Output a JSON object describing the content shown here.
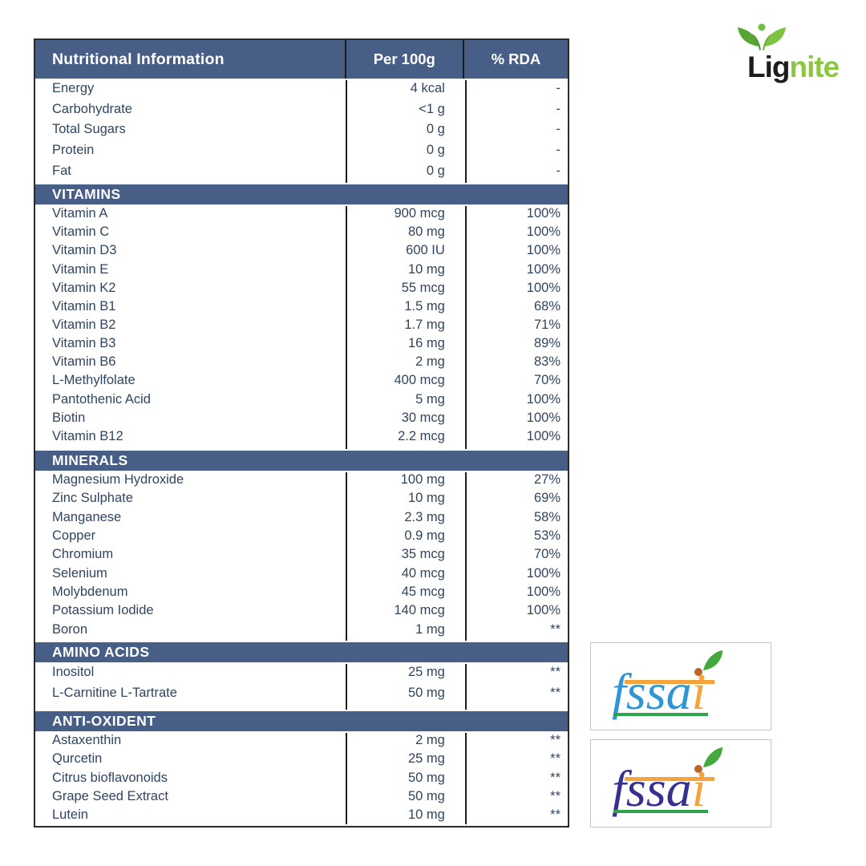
{
  "brand": {
    "prefix": "Lig",
    "suffix": "nite",
    "prefix_color": "#1d1d1b",
    "suffix_color": "#8dc63f",
    "sprout_icon_colors": [
      "#57a536",
      "#7dc242",
      "#6fbf44"
    ]
  },
  "table": {
    "header": {
      "name": "Nutritional Information",
      "per_100g": "Per 100g",
      "rda": "% RDA"
    },
    "header_bg": "#475e86",
    "row_text_color": "#2f4560",
    "sections": [
      {
        "title": null,
        "rows": [
          {
            "name": "Energy",
            "per_100g": "4 kcal",
            "rda": "-"
          },
          {
            "name": "Carbohydrate",
            "per_100g": "<1 g",
            "rda": "-"
          },
          {
            "name": "Total Sugars",
            "per_100g": "0 g",
            "rda": "-"
          },
          {
            "name": "Protein",
            "per_100g": "0 g",
            "rda": "-"
          },
          {
            "name": "Fat",
            "per_100g": "0 g",
            "rda": "-"
          }
        ]
      },
      {
        "title": "VITAMINS",
        "rows": [
          {
            "name": "Vitamin A",
            "per_100g": "900 mcg",
            "rda": "100%"
          },
          {
            "name": "Vitamin C",
            "per_100g": "80 mg",
            "rda": "100%"
          },
          {
            "name": "Vitamin D3",
            "per_100g": "600 IU",
            "rda": "100%"
          },
          {
            "name": "Vitamin E",
            "per_100g": "10 mg",
            "rda": "100%"
          },
          {
            "name": "Vitamin K2",
            "per_100g": "55 mcg",
            "rda": "100%"
          },
          {
            "name": "Vitamin B1",
            "per_100g": "1.5 mg",
            "rda": "68%"
          },
          {
            "name": "Vitamin B2",
            "per_100g": "1.7 mg",
            "rda": "71%"
          },
          {
            "name": "Vitamin B3",
            "per_100g": "16 mg",
            "rda": "89%"
          },
          {
            "name": "Vitamin B6",
            "per_100g": "2 mg",
            "rda": "83%"
          },
          {
            "name": "L-Methylfolate",
            "per_100g": "400 mcg",
            "rda": "70%"
          },
          {
            "name": "Pantothenic Acid",
            "per_100g": "5 mg",
            "rda": "100%"
          },
          {
            "name": "Biotin",
            "per_100g": "30 mcg",
            "rda": "100%"
          },
          {
            "name": "Vitamin B12",
            "per_100g": "2.2 mcg",
            "rda": "100%"
          }
        ]
      },
      {
        "title": "MINERALS",
        "rows": [
          {
            "name": "Magnesium Hydroxide",
            "per_100g": "100 mg",
            "rda": "27%"
          },
          {
            "name": "Zinc Sulphate",
            "per_100g": "10 mg",
            "rda": "69%"
          },
          {
            "name": "Manganese",
            "per_100g": "2.3 mg",
            "rda": "58%"
          },
          {
            "name": "Copper",
            "per_100g": "0.9 mg",
            "rda": "53%"
          },
          {
            "name": "Chromium",
            "per_100g": "35 mcg",
            "rda": "70%"
          },
          {
            "name": "Selenium",
            "per_100g": "40 mcg",
            "rda": "100%"
          },
          {
            "name": "Molybdenum",
            "per_100g": "45 mcg",
            "rda": "100%"
          },
          {
            "name": "Potassium Iodide",
            "per_100g": "140 mcg",
            "rda": "100%"
          },
          {
            "name": "Boron",
            "per_100g": "1 mg",
            "rda": "**"
          }
        ]
      },
      {
        "title": "AMINO ACIDS",
        "rows": [
          {
            "name": "Inositol",
            "per_100g": "25 mg",
            "rda": "**"
          },
          {
            "name": "L-Carnitine L-Tartrate",
            "per_100g": "50 mg",
            "rda": "**"
          }
        ]
      },
      {
        "title": "ANTI-OXIDENT",
        "rows": [
          {
            "name": "Astaxenthin",
            "per_100g": "2 mg",
            "rda": "**"
          },
          {
            "name": "Qurcetin",
            "per_100g": "25 mg",
            "rda": "**"
          },
          {
            "name": "Citrus bioflavonoids",
            "per_100g": "50 mg",
            "rda": "**"
          },
          {
            "name": "Grape Seed Extract",
            "per_100g": "50 mg",
            "rda": "**"
          },
          {
            "name": "Lutein",
            "per_100g": "10 mg",
            "rda": "**"
          }
        ]
      }
    ]
  },
  "certifications": [
    {
      "text_main": "fssa",
      "text_i": "i",
      "main_color": "#2e96d5",
      "i_color": "#f6a33c",
      "top_bar_color": "#f6a33c",
      "bottom_bar_color": "#2fa44c",
      "leaf_color": "#44a93c",
      "dot_color": "#b9672a"
    },
    {
      "text_main": "fssa",
      "text_i": "i",
      "main_color": "#36318e",
      "i_color": "#f6a33c",
      "top_bar_color": "#f6a33c",
      "bottom_bar_color": "#2fa44c",
      "leaf_color": "#44a93c",
      "dot_color": "#b9672a"
    }
  ]
}
